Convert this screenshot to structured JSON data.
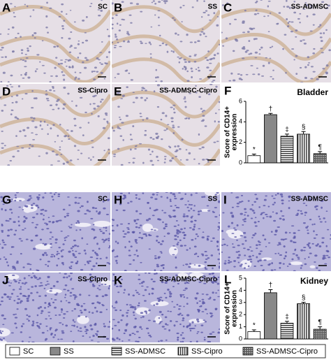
{
  "panels": [
    {
      "letter": "A",
      "label": "SC"
    },
    {
      "letter": "B",
      "label": "SS"
    },
    {
      "letter": "C",
      "label": "SS-ADMSC"
    },
    {
      "letter": "D",
      "label": "SS-Cipro"
    },
    {
      "letter": "E",
      "label": "SS-ADMSC-Cipro"
    },
    {
      "letter": "G",
      "label": "SC"
    },
    {
      "letter": "H",
      "label": "SS"
    },
    {
      "letter": "I",
      "label": "SS-ADMSC"
    },
    {
      "letter": "J",
      "label": "SS-Cipro"
    },
    {
      "letter": "K",
      "label": "SS-ADMSC-Cipro"
    }
  ],
  "chart_data": [
    {
      "type": "bar",
      "letter": "F",
      "title": "Bladder",
      "ylabel": [
        "Score of CD14+",
        "expression"
      ],
      "values": [
        0.7,
        4.7,
        2.6,
        2.8,
        0.9
      ],
      "errors": [
        0.15,
        0.12,
        0.2,
        0.25,
        0.2
      ],
      "annotations": [
        "*",
        "†",
        "‡",
        "§",
        "¶"
      ],
      "ylim": [
        0,
        6
      ],
      "yticks": [
        0,
        2,
        4,
        6
      ]
    },
    {
      "type": "bar",
      "letter": "L",
      "title": "Kidney",
      "ylabel": [
        "Score of CD14+",
        "expression"
      ],
      "values": [
        0.6,
        3.8,
        1.3,
        2.9,
        0.8
      ],
      "errors": [
        0.15,
        0.25,
        0.15,
        0.12,
        0.2
      ],
      "annotations": [
        "*",
        "†",
        "‡",
        "§",
        "¶"
      ],
      "ylim": [
        0,
        5
      ],
      "yticks": [
        0,
        1,
        2,
        3,
        4,
        5
      ]
    }
  ],
  "legend": {
    "labels": [
      "SC",
      "SS",
      "SS-ADMSC",
      "SS-Cipro",
      "SS-ADMSC-Cipro"
    ],
    "fills": [
      "white",
      "gray",
      "hlines",
      "vlines",
      "grid"
    ]
  }
}
